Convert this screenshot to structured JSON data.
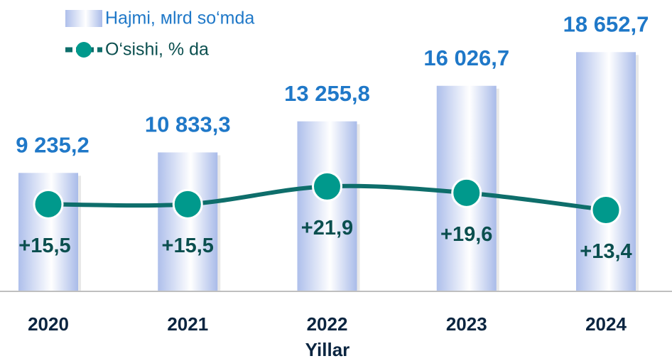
{
  "chart_data": {
    "type": "bar",
    "categories": [
      "2020",
      "2021",
      "2022",
      "2023",
      "2024"
    ],
    "x_label": "Yillar",
    "ylim": [
      0,
      20500
    ],
    "y2lim": [
      -16,
      79
    ],
    "series": [
      {
        "name": "Hajmi, мlrd so‘mda",
        "type": "bar",
        "color": "#b7c7ef",
        "label_color": "#1f78c8",
        "values": [
          9235.2,
          10833.3,
          13255.8,
          16026.7,
          18652.7
        ],
        "value_labels": [
          "9 235,2",
          "10 833,3",
          "13 255,8",
          "16 026,7",
          "18 652,7"
        ]
      },
      {
        "name": "O‘sishi, % da",
        "type": "line",
        "axis": "y2",
        "color": "#0e6e6b",
        "marker_color": "#00998c",
        "label_color": "#0b4f4f",
        "values": [
          15.5,
          15.5,
          21.9,
          19.6,
          13.4
        ],
        "value_labels": [
          "+15,5",
          "+15,5",
          "+21,9",
          "+19,6",
          "+13,4"
        ]
      }
    ]
  }
}
